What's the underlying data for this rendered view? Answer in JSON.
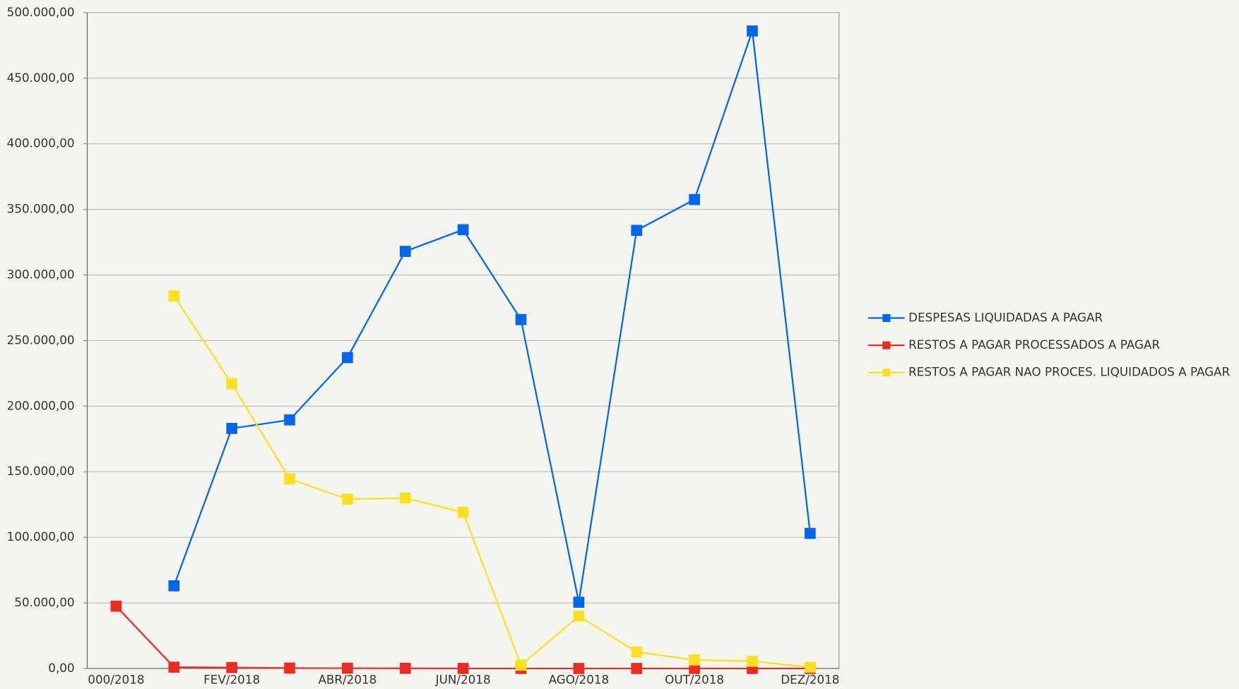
{
  "chart_data": {
    "type": "line",
    "categories": [
      "000/2018",
      null,
      "FEV/2018",
      null,
      "ABR/2018",
      null,
      "JUN/2018",
      null,
      "AGO/2018",
      null,
      "OUT/2018",
      null,
      "DEZ/2018"
    ],
    "series": [
      {
        "name": "DESPESAS LIQUIDADAS A PAGAR",
        "color": "#0066ee",
        "values": [
          null,
          63000,
          183000,
          189500,
          237000,
          318000,
          334500,
          266000,
          50500,
          334000,
          357500,
          486000,
          103000
        ]
      },
      {
        "name": "RESTOS A PAGAR PROCESSADOS A PAGAR",
        "color": "#ee2a22",
        "values": [
          47500,
          1000,
          700,
          300,
          200,
          100,
          0,
          0,
          0,
          0,
          0,
          0,
          0
        ]
      },
      {
        "name": "RESTOS A PAGAR NAO PROCES. LIQUIDADOS A PAGAR",
        "color": "#ffe020",
        "values": [
          null,
          284000,
          217000,
          144500,
          129000,
          130000,
          119000,
          2500,
          40000,
          12500,
          6500,
          5500,
          1000
        ]
      }
    ],
    "ylim": [
      0,
      500000
    ],
    "yticks": [
      {
        "value": 0,
        "label": "0,00"
      },
      {
        "value": 50000,
        "label": "50.000,00"
      },
      {
        "value": 100000,
        "label": "100.000,00"
      },
      {
        "value": 150000,
        "label": "150.000,00"
      },
      {
        "value": 200000,
        "label": "200.000,00"
      },
      {
        "value": 250000,
        "label": "250.000,00"
      },
      {
        "value": 300000,
        "label": "300.000,00"
      },
      {
        "value": 350000,
        "label": "350.000,00"
      },
      {
        "value": 400000,
        "label": "400.000,00"
      },
      {
        "value": 450000,
        "label": "450.000,00"
      },
      {
        "value": 500000,
        "label": "500.000,00"
      }
    ],
    "grid": true,
    "legend": "right"
  }
}
